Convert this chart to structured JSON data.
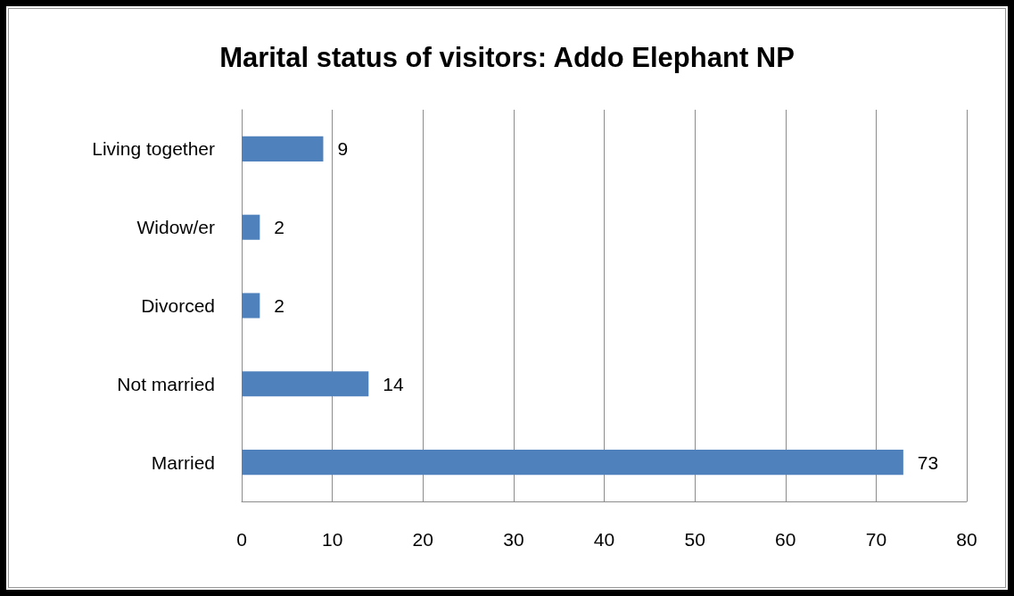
{
  "chart_data": {
    "type": "bar",
    "orientation": "horizontal",
    "title": "Marital status of visitors: Addo Elephant NP",
    "categories": [
      "Living together",
      "Widow/er",
      "Divorced",
      "Not married",
      "Married"
    ],
    "values": [
      9,
      2,
      2,
      14,
      73
    ],
    "color": "#4f81bd",
    "xlim": [
      0,
      80
    ],
    "xticks": [
      0,
      10,
      20,
      30,
      40,
      50,
      60,
      70,
      80
    ],
    "grid": "x",
    "data_labels": true
  }
}
